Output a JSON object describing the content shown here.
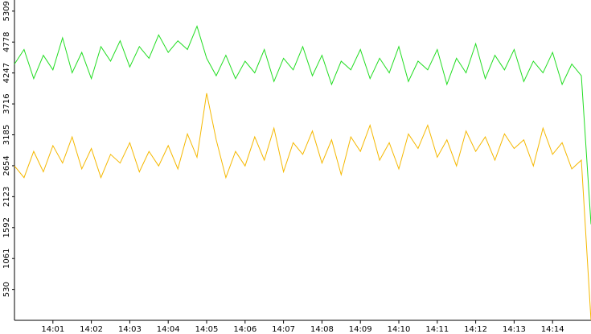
{
  "chart_data": {
    "type": "line",
    "x": [
      0,
      0.25,
      0.5,
      0.75,
      1,
      1.25,
      1.5,
      1.75,
      2,
      2.25,
      2.5,
      2.75,
      3,
      3.25,
      3.5,
      3.75,
      4,
      4.25,
      4.5,
      4.75,
      5,
      5.25,
      5.5,
      5.75,
      6,
      6.25,
      6.5,
      6.75,
      7,
      7.25,
      7.5,
      7.75,
      8,
      8.25,
      8.5,
      8.75,
      9,
      9.25,
      9.5,
      9.75,
      10,
      10.25,
      10.5,
      10.75,
      11,
      11.25,
      11.5,
      11.75,
      12,
      12.25,
      12.5,
      12.75,
      13,
      13.25,
      13.5,
      13.75,
      14,
      14.25,
      14.5,
      14.75,
      15
    ],
    "series": [
      {
        "color": "#22dd22",
        "values": [
          4400,
          4650,
          4150,
          4550,
          4300,
          4850,
          4250,
          4600,
          4150,
          4700,
          4450,
          4800,
          4350,
          4700,
          4500,
          4900,
          4600,
          4800,
          4650,
          5050,
          4500,
          4200,
          4550,
          4150,
          4450,
          4250,
          4650,
          4100,
          4500,
          4300,
          4700,
          4200,
          4550,
          4050,
          4450,
          4300,
          4650,
          4150,
          4500,
          4250,
          4700,
          4100,
          4450,
          4300,
          4650,
          4050,
          4500,
          4250,
          4750,
          4150,
          4550,
          4300,
          4650,
          4100,
          4450,
          4250,
          4600,
          4050,
          4400,
          4200,
          1650
        ]
      },
      {
        "color": "#f5b800",
        "values": [
          2650,
          2450,
          2900,
          2550,
          3000,
          2700,
          3150,
          2600,
          2950,
          2450,
          2850,
          2700,
          3050,
          2550,
          2900,
          2650,
          3000,
          2600,
          3200,
          2800,
          3900,
          3100,
          2450,
          2900,
          2650,
          3150,
          2750,
          3300,
          2550,
          3050,
          2850,
          3250,
          2700,
          3100,
          2500,
          3150,
          2900,
          3350,
          2750,
          3050,
          2600,
          3200,
          2950,
          3350,
          2800,
          3100,
          2650,
          3250,
          2900,
          3150,
          2750,
          3200,
          2950,
          3100,
          2650,
          3300,
          2850,
          3050,
          2600,
          2750,
          0
        ]
      }
    ],
    "xlim": [
      0,
      15
    ],
    "ylim": [
      0,
      5500
    ],
    "xticks": [
      {
        "value": 1,
        "label": "14:01"
      },
      {
        "value": 2,
        "label": "14:02"
      },
      {
        "value": 3,
        "label": "14:03"
      },
      {
        "value": 4,
        "label": "14:04"
      },
      {
        "value": 5,
        "label": "14:05"
      },
      {
        "value": 6,
        "label": "14:06"
      },
      {
        "value": 7,
        "label": "14:07"
      },
      {
        "value": 8,
        "label": "14:08"
      },
      {
        "value": 9,
        "label": "14:09"
      },
      {
        "value": 10,
        "label": "14:10"
      },
      {
        "value": 11,
        "label": "14:11"
      },
      {
        "value": 12,
        "label": "14:12"
      },
      {
        "value": 13,
        "label": "14:13"
      },
      {
        "value": 14,
        "label": "14:14"
      }
    ],
    "yticks": [
      530,
      1061,
      1592,
      2123,
      2654,
      3185,
      3716,
      4247,
      4778,
      5309
    ]
  }
}
